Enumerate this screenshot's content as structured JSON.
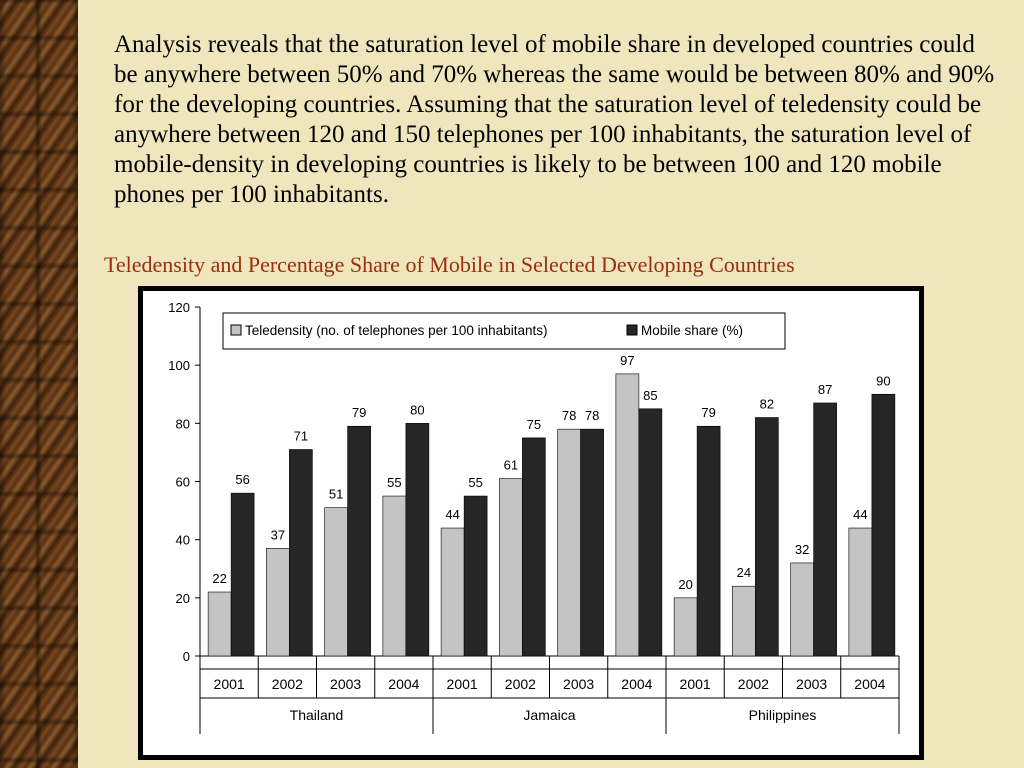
{
  "slide": {
    "paragraph": "Analysis reveals that the saturation level of mobile share in developed countries could be anywhere between 50% and 70% whereas the same would be between 80% and 90% for the developing countries. Assuming that the saturation level of teledensity could be anywhere between 120 and 150 telephones per 100 inhabitants, the saturation level of mobile-density in developing countries is likely to be between 100 and 120 mobile phones per 100 inhabitants.",
    "chart_title": "Teledensity and Percentage Share of Mobile in Selected Developing Countries"
  },
  "colors": {
    "background": "#efe6bd",
    "title": "#9b2d10",
    "teledensity_bar": "#c4c4c4",
    "mobile_bar": "#262626"
  },
  "chart_data": {
    "type": "bar",
    "title": "Teledensity and Percentage Share of Mobile in Selected Developing Countries",
    "xlabel": "",
    "ylabel": "",
    "ylim": [
      0,
      120
    ],
    "yticks": [
      0,
      20,
      40,
      60,
      80,
      100,
      120
    ],
    "grid": false,
    "legend": "top",
    "categories": [
      "2001",
      "2002",
      "2003",
      "2004",
      "2001",
      "2002",
      "2003",
      "2004",
      "2001",
      "2002",
      "2003",
      "2004"
    ],
    "groups": [
      {
        "name": "Thailand",
        "count": 4
      },
      {
        "name": "Jamaica",
        "count": 4
      },
      {
        "name": "Philippines",
        "count": 4
      }
    ],
    "series": [
      {
        "name": "Teledensity (no. of telephones per 100 inhabitants)",
        "color": "#c4c4c4",
        "values": [
          22,
          37,
          51,
          55,
          44,
          61,
          78,
          97,
          20,
          24,
          32,
          44
        ]
      },
      {
        "name": "Mobile share (%)",
        "color": "#262626",
        "values": [
          56,
          71,
          79,
          80,
          55,
          75,
          78,
          85,
          79,
          82,
          87,
          90
        ]
      }
    ]
  }
}
